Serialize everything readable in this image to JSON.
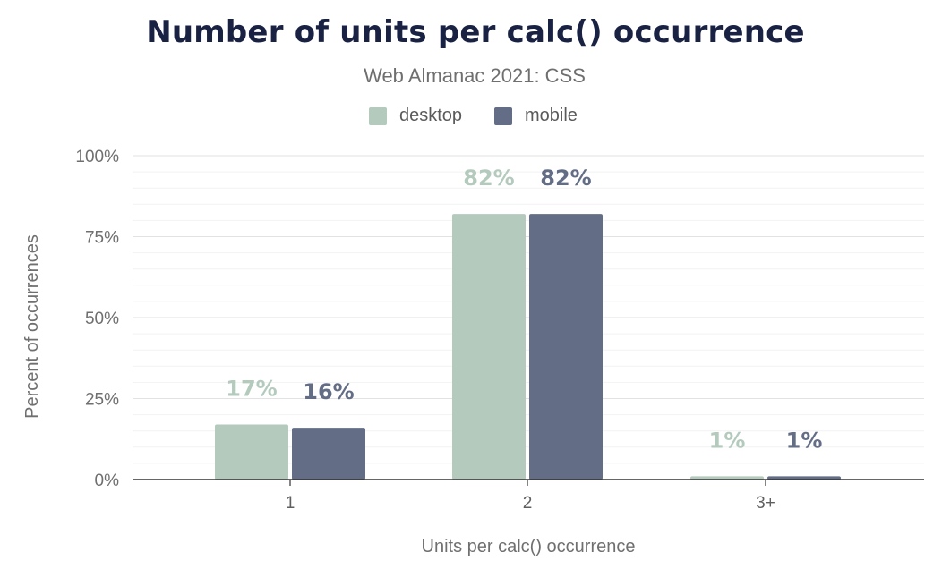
{
  "chart_data": {
    "type": "bar",
    "title": "Number of units per calc() occurrence",
    "subtitle": "Web Almanac 2021: CSS",
    "xlabel": "Units per calc() occurrence",
    "ylabel": "Percent of occurrences",
    "categories": [
      "1",
      "2",
      "3+"
    ],
    "series": [
      {
        "name": "desktop",
        "color": "#b3cabd",
        "values": [
          17,
          82,
          1
        ],
        "labels": [
          "17%",
          "82%",
          "1%"
        ]
      },
      {
        "name": "mobile",
        "color": "#636e86",
        "values": [
          16,
          82,
          1
        ],
        "labels": [
          "16%",
          "82%",
          "1%"
        ]
      }
    ],
    "ylim": [
      0,
      100
    ],
    "yticks": [
      0,
      25,
      50,
      75,
      100
    ],
    "ytick_labels": [
      "0%",
      "25%",
      "50%",
      "75%",
      "100%"
    ],
    "grid": true,
    "legend_position": "top"
  }
}
